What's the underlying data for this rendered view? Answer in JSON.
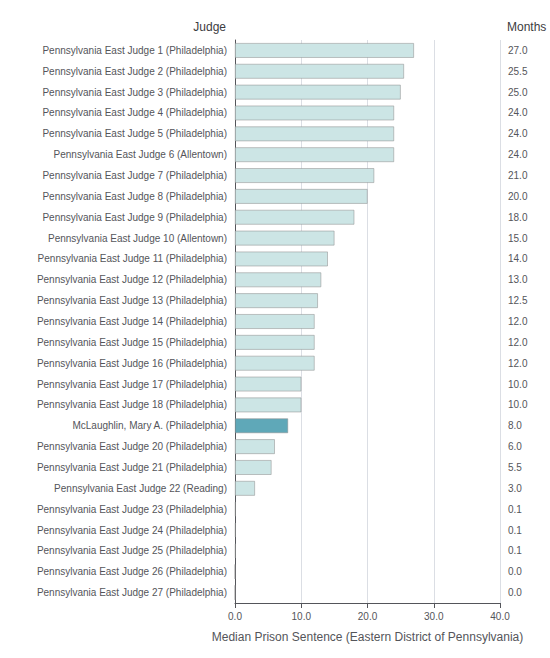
{
  "chart_data": {
    "type": "bar",
    "orientation": "horizontal",
    "ylabel": "Judge",
    "y2label": "Months",
    "xlabel": "Median Prison Sentence (Eastern District of Pennsylvania)",
    "categories": [
      "Pennsylvania East Judge 1 (Philadelphia)",
      "Pennsylvania East Judge 2 (Philadelphia)",
      "Pennsylvania East Judge 3 (Philadelphia)",
      "Pennsylvania East Judge 4 (Philadelphia)",
      "Pennsylvania East Judge 5 (Philadelphia)",
      "Pennsylvania East Judge 6 (Allentown)",
      "Pennsylvania East Judge 7 (Philadelphia)",
      "Pennsylvania East Judge 8 (Philadelphia)",
      "Pennsylvania East Judge 9 (Philadelphia)",
      "Pennsylvania East Judge 10 (Allentown)",
      "Pennsylvania East Judge 11 (Philadelphia)",
      "Pennsylvania East Judge 12 (Philadelphia)",
      "Pennsylvania East Judge 13 (Philadelphia)",
      "Pennsylvania East Judge 14 (Philadelphia)",
      "Pennsylvania East Judge 15 (Philadelphia)",
      "Pennsylvania East Judge 16 (Philadelphia)",
      "Pennsylvania East Judge 17 (Philadelphia)",
      "Pennsylvania East Judge 18 (Philadelphia)",
      "McLaughlin, Mary A. (Philadelphia)",
      "Pennsylvania East Judge 20 (Philadelphia)",
      "Pennsylvania East Judge 21 (Philadelphia)",
      "Pennsylvania East Judge 22 (Reading)",
      "Pennsylvania East Judge 23 (Philadelphia)",
      "Pennsylvania East Judge 24 (Philadelphia)",
      "Pennsylvania East Judge 25 (Philadelphia)",
      "Pennsylvania East Judge 26 (Philadelphia)",
      "Pennsylvania East Judge 27 (Philadelphia)"
    ],
    "values": [
      27.0,
      25.5,
      25.0,
      24.0,
      24.0,
      24.0,
      21.0,
      20.0,
      18.0,
      15.0,
      14.0,
      13.0,
      12.5,
      12.0,
      12.0,
      12.0,
      10.0,
      10.0,
      8.0,
      6.0,
      5.5,
      3.0,
      0.1,
      0.1,
      0.1,
      0.0,
      0.0
    ],
    "data_labels": true,
    "value_labels": [
      "27.0",
      "25.5",
      "25.0",
      "24.0",
      "24.0",
      "24.0",
      "21.0",
      "20.0",
      "18.0",
      "15.0",
      "14.0",
      "13.0",
      "12.5",
      "12.0",
      "12.0",
      "12.0",
      "10.0",
      "10.0",
      "8.0",
      "6.0",
      "5.5",
      "3.0",
      "0.1",
      "0.1",
      "0.1",
      "0.0",
      "0.0"
    ],
    "colors": [
      "#cce5e5",
      "#cce5e5",
      "#cce5e5",
      "#cce5e5",
      "#cce5e5",
      "#cce5e5",
      "#cce5e5",
      "#cce5e5",
      "#cce5e5",
      "#cce5e5",
      "#cce5e5",
      "#cce5e5",
      "#cce5e5",
      "#cce5e5",
      "#cce5e5",
      "#cce5e5",
      "#cce5e5",
      "#cce5e5",
      "#5fa8b8",
      "#cce5e5",
      "#cce5e5",
      "#cce5e5",
      "#cce5e5",
      "#cce5e5",
      "#cce5e5",
      "#cce5e5",
      "#cce5e5"
    ],
    "xlim": [
      0.0,
      40.0
    ],
    "xticks": [
      {
        "value": 0.0,
        "label": "0.0"
      },
      {
        "value": 10.0,
        "label": "10.0"
      },
      {
        "value": 20.0,
        "label": "20.0"
      },
      {
        "value": 30.0,
        "label": "30.0"
      },
      {
        "value": 40.0,
        "label": "40.0"
      }
    ],
    "grid": true
  }
}
